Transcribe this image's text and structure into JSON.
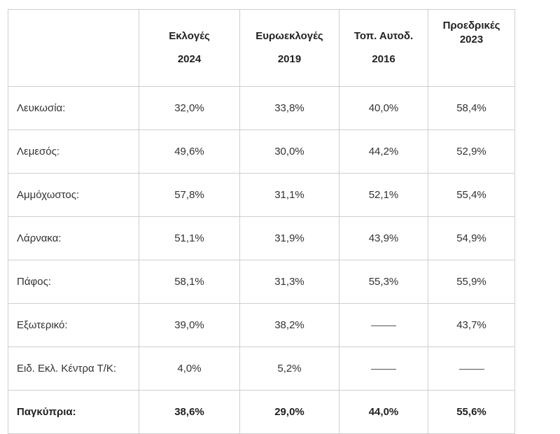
{
  "table": {
    "headers": [
      {
        "line1": "",
        "line2": ""
      },
      {
        "line1": "Εκλογές",
        "line2": "2024"
      },
      {
        "line1": "Ευρωεκλογές",
        "line2": "2019"
      },
      {
        "line1": "Τοπ. Αυτοδ.",
        "line2": "2016"
      },
      {
        "line1": "Προεδρικές",
        "line2": "2023"
      }
    ],
    "rows": [
      {
        "name": "Λευκωσία:",
        "values": [
          "32,0%",
          "33,8%",
          "40,0%",
          "58,4%"
        ]
      },
      {
        "name": "Λεμεσός:",
        "values": [
          "49,6%",
          "30,0%",
          "44,2%",
          "52,9%"
        ]
      },
      {
        "name": "Αμμόχωστος:",
        "values": [
          "57,8%",
          "31,1%",
          "52,1%",
          "55,4%"
        ]
      },
      {
        "name": "Λάρνακα:",
        "values": [
          "51,1%",
          "31,9%",
          "43,9%",
          "54,9%"
        ]
      },
      {
        "name": "Πάφος:",
        "values": [
          "58,1%",
          "31,3%",
          "55,3%",
          "55,9%"
        ]
      },
      {
        "name": "Εξωτερικό:",
        "values": [
          "39,0%",
          "38,2%",
          "——",
          "43,7%"
        ]
      },
      {
        "name": "Ειδ. Εκλ. Κέντρα Τ/Κ:",
        "values": [
          "4,0%",
          "5,2%",
          "——",
          "——"
        ]
      }
    ],
    "total": {
      "name": "Παγκύπρια:",
      "values": [
        "38,6%",
        "29,0%",
        "44,0%",
        "55,6%"
      ]
    }
  }
}
